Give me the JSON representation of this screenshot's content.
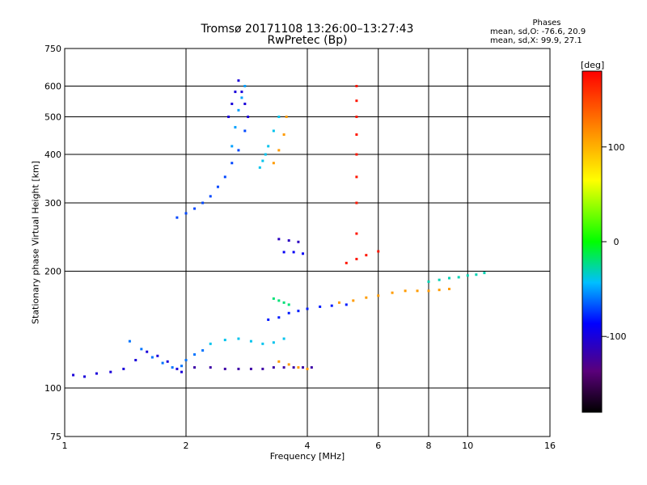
{
  "chart_data": {
    "type": "scatter",
    "title": "Tromsø 20171108 13:26:00–13:27:43",
    "subtitle": "RwPretec (Bp)",
    "xlabel": "Frequency [MHz]",
    "ylabel": "Stationary phase Virtual Height [km]",
    "x_scale": "log",
    "y_scale": "log",
    "xlim": [
      1,
      16
    ],
    "ylim": [
      75,
      750
    ],
    "x_ticks": [
      1,
      2,
      4,
      6,
      8,
      10,
      16
    ],
    "y_ticks": [
      75,
      100,
      200,
      300,
      400,
      500,
      600,
      750
    ],
    "grid": true,
    "colorbar": {
      "label": "[deg]",
      "ticks": [
        100,
        0,
        -100
      ],
      "range": [
        -180,
        180
      ]
    },
    "annotation": {
      "header": "Phases",
      "line1": "mean, sd,O: -76.6, 20.9",
      "line2": "mean, sd,X:  99.9, 27.1"
    },
    "traces": [
      {
        "x": [
          1.05,
          1.12,
          1.2,
          1.3,
          1.4,
          1.5,
          1.6,
          1.7,
          1.8,
          1.9,
          1.95
        ],
        "y": [
          108,
          107,
          109,
          110,
          112,
          118,
          124,
          121,
          117,
          112,
          110
        ],
        "phase": -100
      },
      {
        "x": [
          1.45,
          1.55,
          1.65,
          1.75,
          1.85,
          1.95,
          2.0,
          2.1,
          2.2
        ],
        "y": [
          132,
          126,
          120,
          116,
          113,
          114,
          118,
          122,
          125
        ],
        "phase": -60
      },
      {
        "x": [
          2.1,
          2.3,
          2.5,
          2.7,
          2.9,
          3.1,
          3.3,
          3.5,
          3.7,
          3.9,
          4.1
        ],
        "y": [
          113,
          113,
          112,
          112,
          112,
          112,
          113,
          113,
          113,
          113,
          113
        ],
        "phase": -120
      },
      {
        "x": [
          3.4,
          3.6,
          3.8,
          4.0
        ],
        "y": [
          117,
          115,
          113,
          112
        ],
        "phase": 110
      },
      {
        "x": [
          2.3,
          2.5,
          2.7,
          2.9,
          3.1,
          3.3,
          3.5
        ],
        "y": [
          130,
          133,
          134,
          132,
          130,
          131,
          134
        ],
        "phase": -40
      },
      {
        "x": [
          3.2,
          3.4,
          3.6,
          3.8,
          4.0,
          4.3,
          4.6,
          5.0
        ],
        "y": [
          150,
          152,
          156,
          158,
          160,
          162,
          163,
          164
        ],
        "phase": -80
      },
      {
        "x": [
          4.8,
          5.2,
          5.6,
          6.0,
          6.5,
          7.0,
          7.5,
          8.0,
          8.5,
          9.0
        ],
        "y": [
          166,
          168,
          171,
          173,
          176,
          178,
          178,
          178,
          179,
          180
        ],
        "phase": 110
      },
      {
        "x": [
          8.0,
          8.5,
          9.0,
          9.5,
          10.0,
          10.5,
          11.0
        ],
        "y": [
          188,
          190,
          192,
          193,
          195,
          196,
          198
        ],
        "phase": -30
      },
      {
        "x": [
          3.3,
          3.4,
          3.5,
          3.6
        ],
        "y": [
          170,
          168,
          166,
          164
        ],
        "phase": -20
      },
      {
        "x": [
          1.9,
          2.0,
          2.1,
          2.2,
          2.3,
          2.4,
          2.5,
          2.6,
          2.7,
          2.8
        ],
        "y": [
          275,
          282,
          290,
          300,
          312,
          330,
          350,
          380,
          410,
          460
        ],
        "phase": -70
      },
      {
        "x": [
          2.6,
          2.65,
          2.7,
          2.75,
          2.8
        ],
        "y": [
          420,
          470,
          520,
          560,
          600
        ],
        "phase": -50
      },
      {
        "x": [
          2.55,
          2.6,
          2.65,
          2.7,
          2.75,
          2.8,
          2.85
        ],
        "y": [
          500,
          540,
          580,
          620,
          580,
          540,
          500
        ],
        "phase": -100
      },
      {
        "x": [
          3.05,
          3.1,
          3.15,
          3.2,
          3.3,
          3.4
        ],
        "y": [
          370,
          385,
          400,
          420,
          460,
          500
        ],
        "phase": -40
      },
      {
        "x": [
          3.3,
          3.4,
          3.5,
          3.55
        ],
        "y": [
          380,
          410,
          450,
          500
        ],
        "phase": 110
      },
      {
        "x": [
          3.4,
          3.6,
          3.8
        ],
        "y": [
          242,
          240,
          238
        ],
        "phase": -110
      },
      {
        "x": [
          3.5,
          3.7,
          3.9
        ],
        "y": [
          224,
          224,
          222
        ],
        "phase": -90
      },
      {
        "x": [
          5.3,
          5.3,
          5.3,
          5.3,
          5.3,
          5.3,
          5.3,
          5.3
        ],
        "y": [
          250,
          300,
          350,
          400,
          450,
          500,
          550,
          600
        ],
        "phase": 170
      },
      {
        "x": [
          5.0,
          5.3,
          5.6,
          6.0
        ],
        "y": [
          210,
          215,
          220,
          225
        ],
        "phase": 170
      }
    ]
  }
}
